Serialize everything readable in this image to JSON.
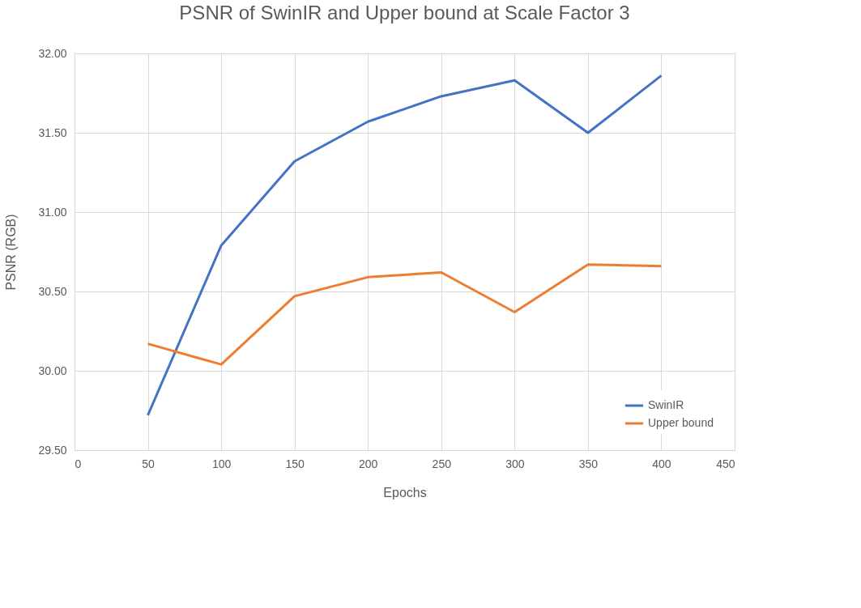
{
  "chart_data": {
    "type": "line",
    "title": "PSNR of SwinIR and Upper bound at Scale Factor 3",
    "xlabel": "Epochs",
    "ylabel": "PSNR (RGB)",
    "x": [
      50,
      100,
      150,
      200,
      250,
      300,
      350,
      400
    ],
    "series": [
      {
        "name": "SwinIR",
        "color": "#4472c4",
        "values": [
          29.72,
          30.79,
          31.32,
          31.57,
          31.73,
          31.83,
          31.5,
          31.86
        ]
      },
      {
        "name": "Upper bound",
        "color": "#ed7d31",
        "values": [
          30.17,
          30.04,
          30.47,
          30.59,
          30.62,
          30.37,
          30.67,
          30.66
        ]
      }
    ],
    "xlim": [
      0,
      450
    ],
    "xticks": [
      0,
      50,
      100,
      150,
      200,
      250,
      300,
      350,
      400,
      450
    ],
    "ylim": [
      29.5,
      32.0
    ],
    "yticks": [
      {
        "value": 29.5,
        "label": "29.50"
      },
      {
        "value": 30.0,
        "label": "30.00"
      },
      {
        "value": 30.5,
        "label": "30.50"
      },
      {
        "value": 31.0,
        "label": "31.00"
      },
      {
        "value": 31.5,
        "label": "31.50"
      },
      {
        "value": 32.0,
        "label": "32.00"
      }
    ],
    "grid": true,
    "legend": "bottom right",
    "marker": "none",
    "line_style": "solid"
  }
}
